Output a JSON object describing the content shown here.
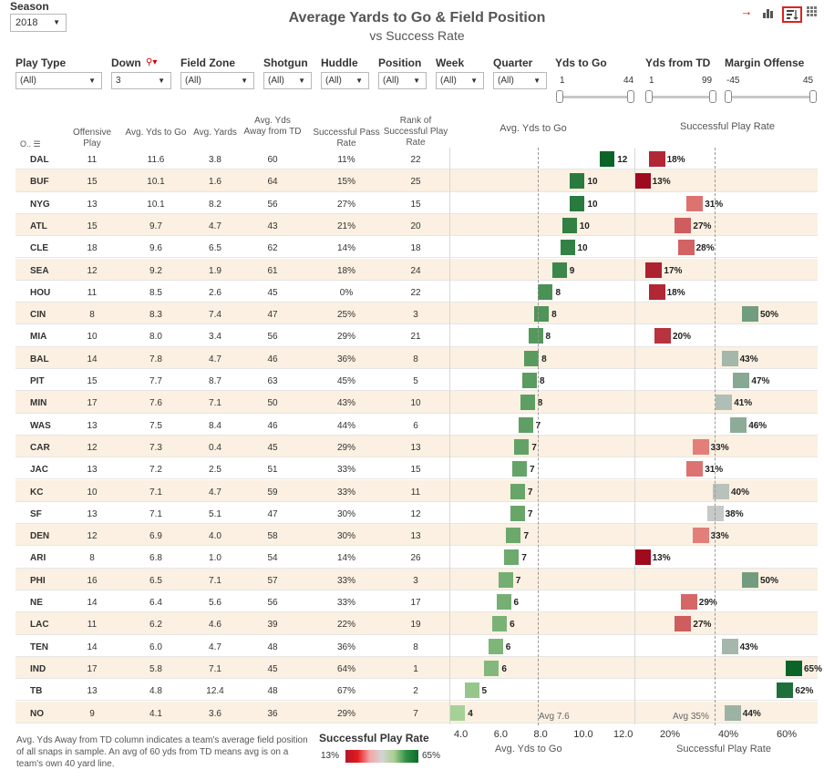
{
  "season": {
    "label": "Season",
    "value": "2018"
  },
  "title": "Average Yards to Go & Field Position",
  "subtitle": "vs Success Rate",
  "filters": [
    {
      "label": "Play Type",
      "value": "(All)"
    },
    {
      "label": "Down",
      "value": "3"
    },
    {
      "label": "Field Zone",
      "value": "(All)"
    },
    {
      "label": "Shotgun",
      "value": "(All)"
    },
    {
      "label": "Huddle",
      "value": "(All)"
    },
    {
      "label": "Position",
      "value": "(All)"
    },
    {
      "label": "Week",
      "value": "(All)"
    },
    {
      "label": "Quarter",
      "value": "(All)"
    }
  ],
  "sliders": [
    {
      "label": "Yds to Go",
      "min": "1",
      "max": "44"
    },
    {
      "label": "Yds from TD",
      "min": "1",
      "max": "99"
    },
    {
      "label": "Margin Offense",
      "min": "-45",
      "max": "45"
    }
  ],
  "headers": {
    "sort": "O..",
    "offensive_play": "Offensive Play",
    "avg_yds_to_go": "Avg. Yds to Go",
    "avg_yards": "Avg. Yards",
    "avg_away": "Avg. Yds Away from TD",
    "pass_rate": "Successful Pass Rate",
    "rank": "Rank of Successful Play Rate",
    "chart1": "Avg. Yds to Go",
    "chart2": "Successful Play Rate"
  },
  "rows": [
    {
      "team": "DAL",
      "plays": "11",
      "ytg": "11.6",
      "yards": "3.8",
      "away": "60",
      "pass": "11%",
      "rank": "22",
      "ytg_label": "12",
      "succ_label": "18%"
    },
    {
      "team": "BUF",
      "plays": "15",
      "ytg": "10.1",
      "yards": "1.6",
      "away": "64",
      "pass": "15%",
      "rank": "25",
      "ytg_label": "10",
      "succ_label": "13%"
    },
    {
      "team": "NYG",
      "plays": "13",
      "ytg": "10.1",
      "yards": "8.2",
      "away": "56",
      "pass": "27%",
      "rank": "15",
      "ytg_label": "10",
      "succ_label": "31%"
    },
    {
      "team": "ATL",
      "plays": "15",
      "ytg": "9.7",
      "yards": "4.7",
      "away": "43",
      "pass": "21%",
      "rank": "20",
      "ytg_label": "10",
      "succ_label": "27%"
    },
    {
      "team": "CLE",
      "plays": "18",
      "ytg": "9.6",
      "yards": "6.5",
      "away": "62",
      "pass": "14%",
      "rank": "18",
      "ytg_label": "10",
      "succ_label": "28%"
    },
    {
      "team": "SEA",
      "plays": "12",
      "ytg": "9.2",
      "yards": "1.9",
      "away": "61",
      "pass": "18%",
      "rank": "24",
      "ytg_label": "9",
      "succ_label": "17%"
    },
    {
      "team": "HOU",
      "plays": "11",
      "ytg": "8.5",
      "yards": "2.6",
      "away": "45",
      "pass": "0%",
      "rank": "22",
      "ytg_label": "8",
      "succ_label": "18%"
    },
    {
      "team": "CIN",
      "plays": "8",
      "ytg": "8.3",
      "yards": "7.4",
      "away": "47",
      "pass": "25%",
      "rank": "3",
      "ytg_label": "8",
      "succ_label": "50%"
    },
    {
      "team": "MIA",
      "plays": "10",
      "ytg": "8.0",
      "yards": "3.4",
      "away": "56",
      "pass": "29%",
      "rank": "21",
      "ytg_label": "8",
      "succ_label": "20%"
    },
    {
      "team": "BAL",
      "plays": "14",
      "ytg": "7.8",
      "yards": "4.7",
      "away": "46",
      "pass": "36%",
      "rank": "8",
      "ytg_label": "8",
      "succ_label": "43%"
    },
    {
      "team": "PIT",
      "plays": "15",
      "ytg": "7.7",
      "yards": "8.7",
      "away": "63",
      "pass": "45%",
      "rank": "5",
      "ytg_label": "8",
      "succ_label": "47%"
    },
    {
      "team": "MIN",
      "plays": "17",
      "ytg": "7.6",
      "yards": "7.1",
      "away": "50",
      "pass": "43%",
      "rank": "10",
      "ytg_label": "8",
      "succ_label": "41%"
    },
    {
      "team": "WAS",
      "plays": "13",
      "ytg": "7.5",
      "yards": "8.4",
      "away": "46",
      "pass": "44%",
      "rank": "6",
      "ytg_label": "7",
      "succ_label": "46%"
    },
    {
      "team": "CAR",
      "plays": "12",
      "ytg": "7.3",
      "yards": "0.4",
      "away": "45",
      "pass": "29%",
      "rank": "13",
      "ytg_label": "7",
      "succ_label": "33%"
    },
    {
      "team": "JAC",
      "plays": "13",
      "ytg": "7.2",
      "yards": "2.5",
      "away": "51",
      "pass": "33%",
      "rank": "15",
      "ytg_label": "7",
      "succ_label": "31%"
    },
    {
      "team": "KC",
      "plays": "10",
      "ytg": "7.1",
      "yards": "4.7",
      "away": "59",
      "pass": "33%",
      "rank": "11",
      "ytg_label": "7",
      "succ_label": "40%"
    },
    {
      "team": "SF",
      "plays": "13",
      "ytg": "7.1",
      "yards": "5.1",
      "away": "47",
      "pass": "30%",
      "rank": "12",
      "ytg_label": "7",
      "succ_label": "38%"
    },
    {
      "team": "DEN",
      "plays": "12",
      "ytg": "6.9",
      "yards": "4.0",
      "away": "58",
      "pass": "30%",
      "rank": "13",
      "ytg_label": "7",
      "succ_label": "33%"
    },
    {
      "team": "ARI",
      "plays": "8",
      "ytg": "6.8",
      "yards": "1.0",
      "away": "54",
      "pass": "14%",
      "rank": "26",
      "ytg_label": "7",
      "succ_label": "13%"
    },
    {
      "team": "PHI",
      "plays": "16",
      "ytg": "6.5",
      "yards": "7.1",
      "away": "57",
      "pass": "33%",
      "rank": "3",
      "ytg_label": "7",
      "succ_label": "50%"
    },
    {
      "team": "NE",
      "plays": "14",
      "ytg": "6.4",
      "yards": "5.6",
      "away": "56",
      "pass": "33%",
      "rank": "17",
      "ytg_label": "6",
      "succ_label": "29%"
    },
    {
      "team": "LAC",
      "plays": "11",
      "ytg": "6.2",
      "yards": "4.6",
      "away": "39",
      "pass": "22%",
      "rank": "19",
      "ytg_label": "6",
      "succ_label": "27%"
    },
    {
      "team": "TEN",
      "plays": "14",
      "ytg": "6.0",
      "yards": "4.7",
      "away": "48",
      "pass": "36%",
      "rank": "8",
      "ytg_label": "6",
      "succ_label": "43%"
    },
    {
      "team": "IND",
      "plays": "17",
      "ytg": "5.8",
      "yards": "7.1",
      "away": "45",
      "pass": "64%",
      "rank": "1",
      "ytg_label": "6",
      "succ_label": "65%"
    },
    {
      "team": "TB",
      "plays": "13",
      "ytg": "4.8",
      "yards": "12.4",
      "away": "48",
      "pass": "67%",
      "rank": "2",
      "ytg_label": "5",
      "succ_label": "62%"
    },
    {
      "team": "NO",
      "plays": "9",
      "ytg": "4.1",
      "yards": "3.6",
      "away": "36",
      "pass": "29%",
      "rank": "7",
      "ytg_label": "4",
      "succ_label": "44%"
    }
  ],
  "chart_data": [
    {
      "type": "bar",
      "title": "Avg. Yds to Go",
      "xlabel": "Avg. Yds to Go",
      "xlim": [
        3.5,
        12.5
      ],
      "ticks": [
        "4.0",
        "6.0",
        "8.0",
        "10.0",
        "12.0"
      ],
      "reference_line": {
        "value": 7.6,
        "label": "Avg 7.6"
      },
      "categories": [
        "DAL",
        "BUF",
        "NYG",
        "ATL",
        "CLE",
        "SEA",
        "HOU",
        "CIN",
        "MIA",
        "BAL",
        "PIT",
        "MIN",
        "WAS",
        "CAR",
        "JAC",
        "KC",
        "SF",
        "DEN",
        "ARI",
        "PHI",
        "NE",
        "LAC",
        "TEN",
        "IND",
        "TB",
        "NO"
      ],
      "values": [
        11.6,
        10.1,
        10.1,
        9.7,
        9.6,
        9.2,
        8.5,
        8.3,
        8.0,
        7.8,
        7.7,
        7.6,
        7.5,
        7.3,
        7.2,
        7.1,
        7.1,
        6.9,
        6.8,
        6.5,
        6.4,
        6.2,
        6.0,
        5.8,
        4.8,
        4.1
      ]
    },
    {
      "type": "bar",
      "title": "Successful Play Rate",
      "xlabel": "Successful Play Rate",
      "xlim": [
        10,
        65
      ],
      "ticks": [
        "20%",
        "40%",
        "60%"
      ],
      "reference_line": {
        "value": 35,
        "label": "Avg 35%"
      },
      "categories": [
        "DAL",
        "BUF",
        "NYG",
        "ATL",
        "CLE",
        "SEA",
        "HOU",
        "CIN",
        "MIA",
        "BAL",
        "PIT",
        "MIN",
        "WAS",
        "CAR",
        "JAC",
        "KC",
        "SF",
        "DEN",
        "ARI",
        "PHI",
        "NE",
        "LAC",
        "TEN",
        "IND",
        "TB",
        "NO"
      ],
      "values": [
        18,
        13,
        31,
        27,
        28,
        17,
        18,
        50,
        20,
        43,
        47,
        41,
        46,
        33,
        31,
        40,
        38,
        33,
        13,
        50,
        29,
        27,
        43,
        65,
        62,
        44
      ]
    }
  ],
  "note": "Avg. Yds Away from TD column indicates a team's average field position of all snaps in sample.  An avg of 60 yds from TD means avg is on a team's own 40 yard line.",
  "legend": {
    "title": "Successful Play Rate",
    "min": "13%",
    "max": "65%"
  }
}
